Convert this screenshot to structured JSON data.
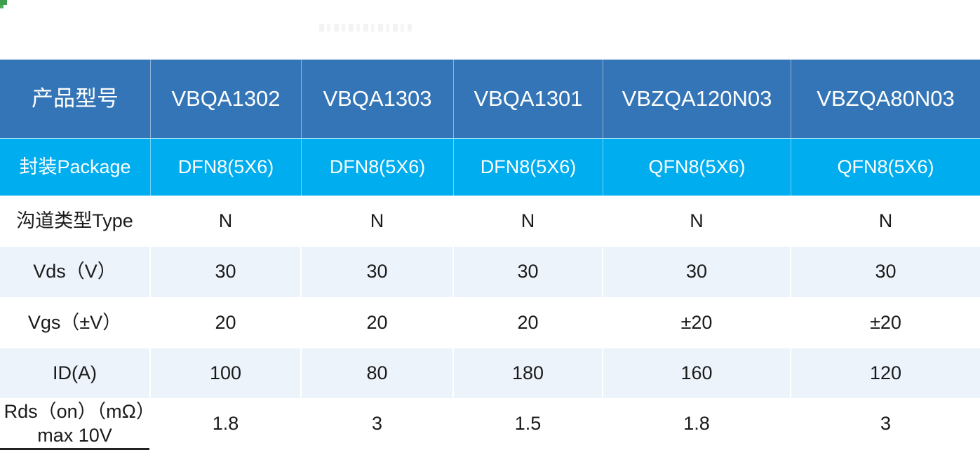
{
  "colors": {
    "header_bg": "#3375B6",
    "package_row_bg": "#00ADEE",
    "shaded_row_bg": "#EDF3FB",
    "header_text": "#FFFFFF",
    "body_text": "#1A1A1A",
    "corner_mark_green": "#3E9D4C"
  },
  "table": {
    "corner_header": "产品型号",
    "product_columns": [
      "VBQA1302",
      "VBQA1303",
      "VBQA1301",
      "VBZQA120N03",
      "VBZQA80N03"
    ],
    "rows": [
      {
        "label": "封装Package",
        "style": "package",
        "values": [
          "DFN8(5X6)",
          "DFN8(5X6)",
          "DFN8(5X6)",
          "QFN8(5X6)",
          "QFN8(5X6)"
        ]
      },
      {
        "label": "沟道类型Type",
        "style": "white",
        "values": [
          "N",
          "N",
          "N",
          "N",
          "N"
        ]
      },
      {
        "label": "Vds（V）",
        "style": "shaded",
        "values": [
          "30",
          "30",
          "30",
          "30",
          "30"
        ]
      },
      {
        "label": "Vgs（±V）",
        "style": "white",
        "values": [
          "20",
          "20",
          "20",
          "±20",
          "±20"
        ]
      },
      {
        "label": "ID(A)",
        "style": "shaded",
        "values": [
          "100",
          "80",
          "180",
          "160",
          "120"
        ]
      },
      {
        "label": "Rds（on）（mΩ）max 10V",
        "style": "white",
        "values": [
          "1.8",
          "3",
          "1.5",
          "1.8",
          "3"
        ]
      }
    ]
  }
}
